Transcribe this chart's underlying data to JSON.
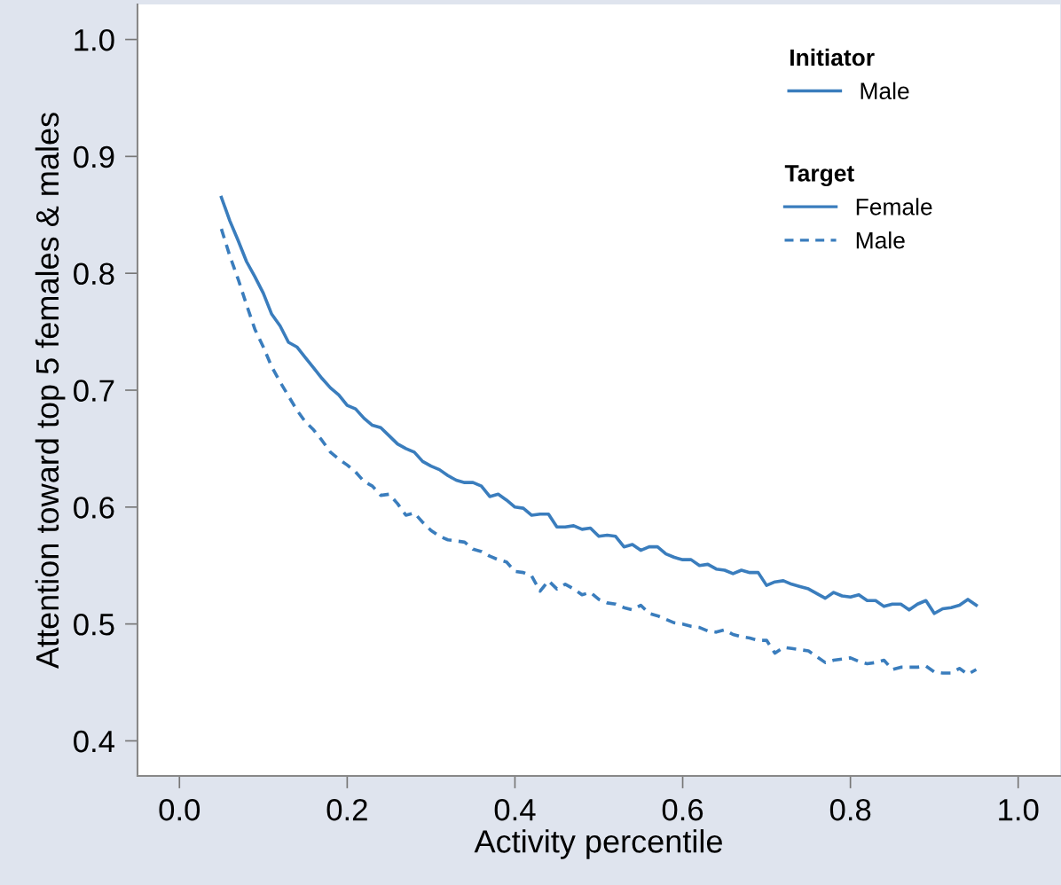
{
  "chart_data": {
    "type": "line",
    "xlabel": "Activity percentile",
    "ylabel": "Attention toward top 5 females & males",
    "xlim": [
      -0.05,
      1.05
    ],
    "ylim": [
      0.37,
      1.03
    ],
    "xticks": [
      {
        "value": 0,
        "label": "0.0"
      },
      {
        "value": 0.2,
        "label": "0.2"
      },
      {
        "value": 0.4,
        "label": "0.4"
      },
      {
        "value": 0.6,
        "label": "0.6"
      },
      {
        "value": 0.8,
        "label": "0.8"
      },
      {
        "value": 1,
        "label": "1.0"
      }
    ],
    "yticks": [
      {
        "value": 0.4,
        "label": "0.4"
      },
      {
        "value": 0.5,
        "label": "0.5"
      },
      {
        "value": 0.6,
        "label": "0.6"
      },
      {
        "value": 0.7,
        "label": "0.7"
      },
      {
        "value": 0.8,
        "label": "0.8"
      },
      {
        "value": 0.9,
        "label": "0.9"
      },
      {
        "value": 1,
        "label": "1.0"
      }
    ],
    "x": [
      0.05,
      0.06,
      0.07,
      0.08,
      0.09,
      0.1,
      0.11,
      0.12,
      0.13,
      0.14,
      0.15,
      0.16,
      0.17,
      0.18,
      0.19,
      0.2,
      0.21,
      0.22,
      0.23,
      0.24,
      0.25,
      0.26,
      0.27,
      0.28,
      0.29,
      0.3,
      0.31,
      0.32,
      0.33,
      0.34,
      0.35,
      0.36,
      0.37,
      0.38,
      0.39,
      0.4,
      0.41,
      0.42,
      0.43,
      0.44,
      0.45,
      0.46,
      0.47,
      0.48,
      0.49,
      0.5,
      0.51,
      0.52,
      0.53,
      0.54,
      0.55,
      0.56,
      0.57,
      0.58,
      0.59,
      0.6,
      0.61,
      0.62,
      0.63,
      0.64,
      0.65,
      0.66,
      0.67,
      0.68,
      0.69,
      0.7,
      0.71,
      0.72,
      0.73,
      0.74,
      0.75,
      0.76,
      0.77,
      0.78,
      0.79,
      0.8,
      0.81,
      0.82,
      0.83,
      0.84,
      0.85,
      0.86,
      0.87,
      0.88,
      0.89,
      0.9,
      0.91,
      0.92,
      0.93,
      0.94,
      0.95
    ],
    "legend": "top right",
    "grid": false,
    "marker": "none",
    "legend_title": [
      "Initiator",
      "Target"
    ],
    "annotations": [
      "Male"
    ],
    "series": [
      {
        "name": "Female",
        "color": "#3a7dbd",
        "line_style": "solid",
        "values": [
          0.865,
          0.845,
          0.828,
          0.81,
          0.797,
          0.783,
          0.765,
          0.755,
          0.741,
          0.737,
          0.728,
          0.719,
          0.71,
          0.702,
          0.696,
          0.687,
          0.684,
          0.676,
          0.67,
          0.668,
          0.661,
          0.654,
          0.65,
          0.647,
          0.639,
          0.635,
          0.632,
          0.627,
          0.623,
          0.621,
          0.621,
          0.618,
          0.609,
          0.611,
          0.606,
          0.6,
          0.599,
          0.593,
          0.594,
          0.594,
          0.583,
          0.583,
          0.584,
          0.581,
          0.582,
          0.575,
          0.576,
          0.575,
          0.566,
          0.568,
          0.563,
          0.566,
          0.566,
          0.56,
          0.557,
          0.555,
          0.555,
          0.55,
          0.551,
          0.547,
          0.546,
          0.543,
          0.546,
          0.544,
          0.544,
          0.533,
          0.536,
          0.537,
          0.534,
          0.532,
          0.53,
          0.526,
          0.522,
          0.527,
          0.524,
          0.523,
          0.525,
          0.52,
          0.52,
          0.515,
          0.517,
          0.517,
          0.512,
          0.517,
          0.52,
          0.509,
          0.513,
          0.514,
          0.516,
          0.521,
          0.516
        ]
      },
      {
        "name": "Male",
        "color": "#3a7dbd",
        "line_style": "dashed",
        "values": [
          0.838,
          0.815,
          0.795,
          0.773,
          0.752,
          0.737,
          0.72,
          0.707,
          0.695,
          0.683,
          0.673,
          0.666,
          0.657,
          0.647,
          0.641,
          0.636,
          0.63,
          0.622,
          0.618,
          0.61,
          0.611,
          0.603,
          0.593,
          0.595,
          0.587,
          0.58,
          0.575,
          0.572,
          0.571,
          0.57,
          0.564,
          0.562,
          0.558,
          0.555,
          0.553,
          0.545,
          0.544,
          0.541,
          0.528,
          0.537,
          0.53,
          0.534,
          0.53,
          0.525,
          0.527,
          0.521,
          0.518,
          0.517,
          0.514,
          0.512,
          0.516,
          0.509,
          0.507,
          0.504,
          0.501,
          0.5,
          0.498,
          0.497,
          0.494,
          0.493,
          0.495,
          0.491,
          0.489,
          0.488,
          0.486,
          0.486,
          0.475,
          0.48,
          0.479,
          0.478,
          0.477,
          0.472,
          0.467,
          0.469,
          0.47,
          0.471,
          0.468,
          0.466,
          0.467,
          0.469,
          0.461,
          0.463,
          0.463,
          0.463,
          0.464,
          0.459,
          0.458,
          0.458,
          0.462,
          0.457,
          0.461
        ]
      }
    ]
  }
}
